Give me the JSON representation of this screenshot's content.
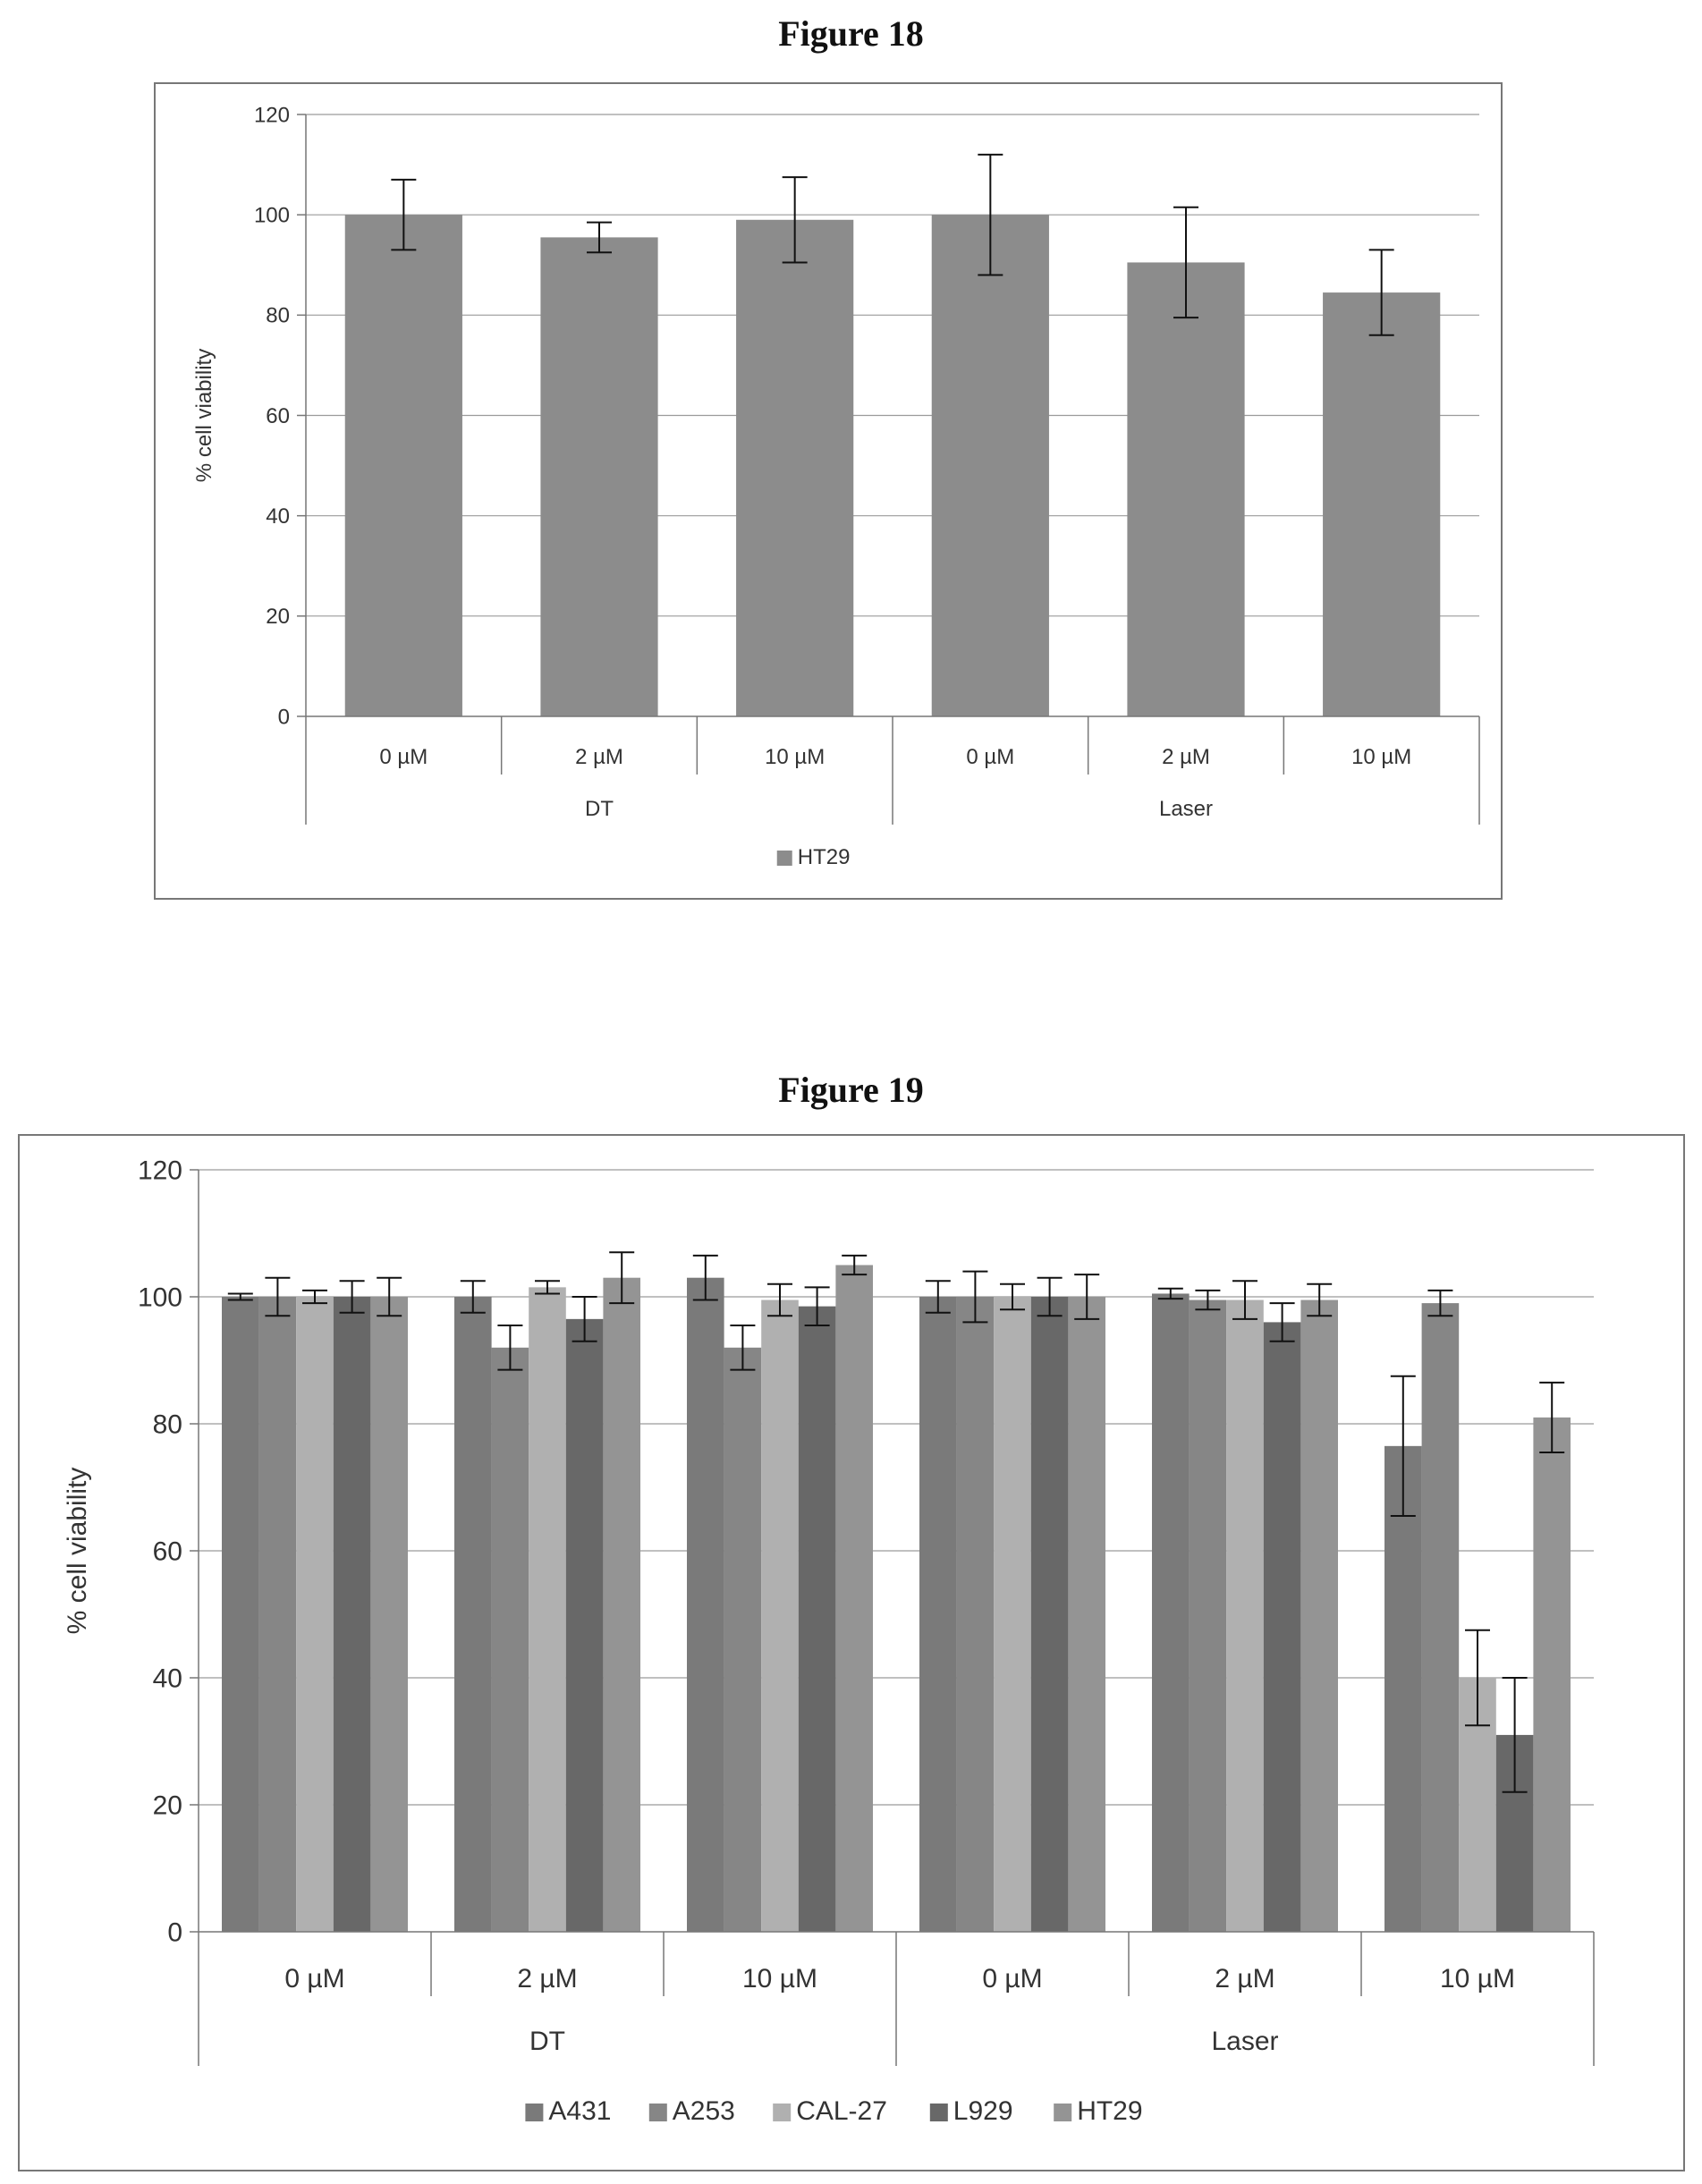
{
  "figures": [
    {
      "title": "Figure 18",
      "chart_data": {
        "type": "bar",
        "ylabel": "% cell viability",
        "xlabel": "",
        "ylim": [
          0,
          120
        ],
        "yticks": [
          0,
          20,
          40,
          60,
          80,
          100,
          120
        ],
        "categories": [
          "0 µM",
          "2 µM",
          "10 µM",
          "0 µM",
          "2 µM",
          "10 µM"
        ],
        "groups": [
          {
            "label": "DT",
            "span": [
              0,
              2
            ]
          },
          {
            "label": "Laser",
            "span": [
              3,
              5
            ]
          }
        ],
        "grid": true,
        "legend_position": "bottom",
        "series": [
          {
            "name": "HT29",
            "color": "#8c8c8c",
            "values": [
              100,
              95.5,
              99,
              100,
              90.5,
              84.5
            ],
            "errors": [
              7,
              3,
              8.5,
              12,
              11,
              8.5
            ]
          }
        ]
      }
    },
    {
      "title": "Figure 19",
      "chart_data": {
        "type": "bar",
        "ylabel": "% cell viability",
        "xlabel": "",
        "ylim": [
          0,
          120
        ],
        "yticks": [
          0,
          20,
          40,
          60,
          80,
          100,
          120
        ],
        "categories": [
          "0 µM",
          "2 µM",
          "10 µM",
          "0 µM",
          "2 µM",
          "10 µM"
        ],
        "groups": [
          {
            "label": "DT",
            "span": [
              0,
              2
            ]
          },
          {
            "label": "Laser",
            "span": [
              3,
              5
            ]
          }
        ],
        "grid": true,
        "legend_position": "bottom",
        "series": [
          {
            "name": "A431",
            "color": "#7a7a7a",
            "values": [
              100,
              100,
              103,
              100,
              100.5,
              76.5
            ],
            "errors": [
              0.5,
              2.5,
              3.5,
              2.5,
              0.8,
              11
            ]
          },
          {
            "name": "A253",
            "color": "#868686",
            "values": [
              100,
              92,
              92,
              100,
              99.5,
              99
            ],
            "errors": [
              3,
              3.5,
              3.5,
              4,
              1.5,
              2
            ]
          },
          {
            "name": "CAL-27",
            "color": "#b0b0b0",
            "values": [
              100,
              101.5,
              99.5,
              100,
              99.5,
              40
            ],
            "errors": [
              1,
              1,
              2.5,
              2,
              3,
              7.5
            ]
          },
          {
            "name": "L929",
            "color": "#686868",
            "values": [
              100,
              96.5,
              98.5,
              100,
              96,
              31
            ],
            "errors": [
              2.5,
              3.5,
              3,
              3,
              3,
              9
            ]
          },
          {
            "name": "HT29",
            "color": "#949494",
            "values": [
              100,
              103,
              105,
              100,
              99.5,
              81
            ],
            "errors": [
              3,
              4,
              1.5,
              3.5,
              2.5,
              5.5
            ]
          }
        ]
      }
    }
  ]
}
